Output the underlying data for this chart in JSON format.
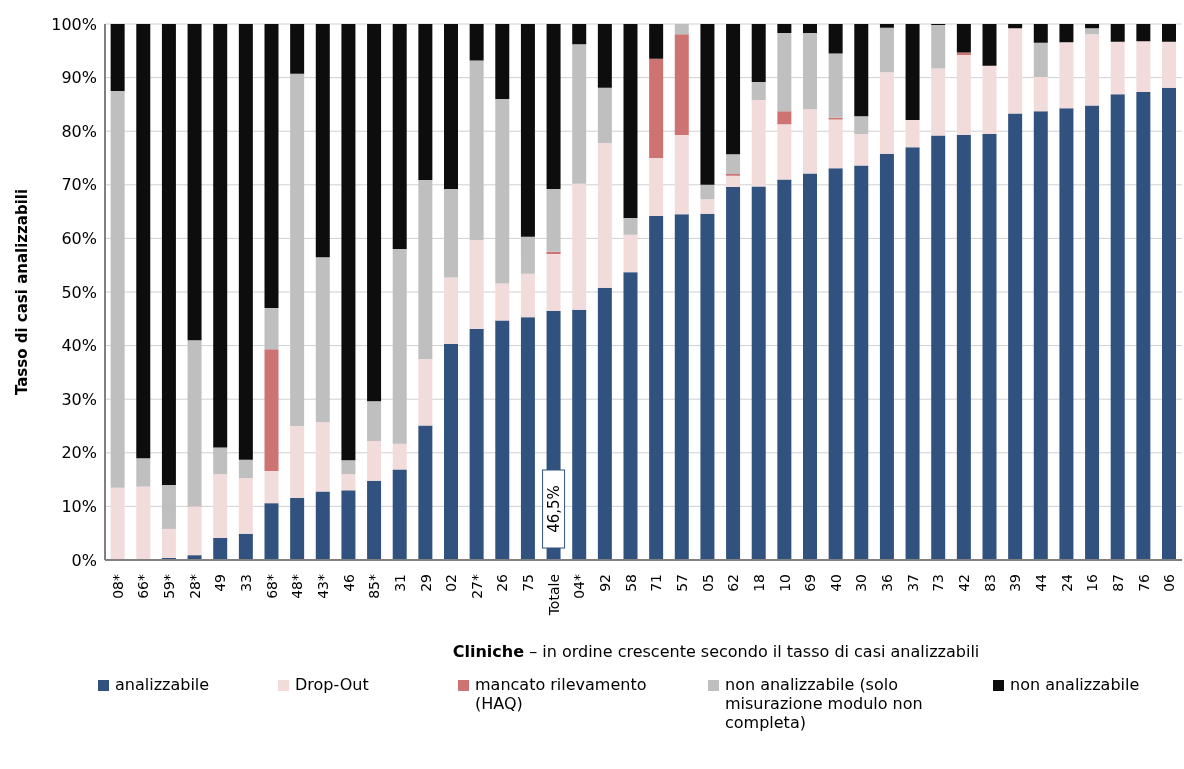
{
  "chart_data": {
    "type": "bar",
    "stacked": true,
    "ylabel": "Tasso di casi analizzabili",
    "xlabel": "Cliniche – in ordine crescente secondo il tasso di casi analizzabili",
    "categories": [
      "08*",
      "66*",
      "59*",
      "28*",
      "49",
      "33",
      "68*",
      "48*",
      "43*",
      "46",
      "85*",
      "31",
      "29",
      "02",
      "27*",
      "26",
      "75",
      "Totale",
      "04*",
      "92",
      "58",
      "71",
      "57",
      "05",
      "62",
      "18",
      "10",
      "69",
      "40",
      "30",
      "36",
      "37",
      "73",
      "42",
      "83",
      "39",
      "44",
      "24",
      "16",
      "87",
      "76",
      "06"
    ],
    "series": [
      {
        "name": "analizzabile",
        "color": "#31527f",
        "value_labels": [
          null,
          null,
          null,
          null,
          null,
          null,
          null,
          null,
          null,
          null,
          null,
          null,
          null,
          null,
          null,
          null,
          null,
          "46,5%",
          null,
          null,
          null,
          null,
          null,
          null,
          null,
          null,
          null,
          null,
          null,
          null,
          null,
          null,
          null,
          null,
          null,
          null,
          null,
          null,
          null,
          null,
          null,
          null
        ],
        "values": [
          0,
          0,
          0.4,
          0.9,
          4.1,
          4.9,
          10.6,
          11.6,
          12.8,
          13,
          14.8,
          16.9,
          25.1,
          40.3,
          43.1,
          44.7,
          45.3,
          46.5,
          46.7,
          50.8,
          53.7,
          64.2,
          64.5,
          64.6,
          69.6,
          69.7,
          71,
          72.1,
          73.1,
          73.6,
          75.8,
          77,
          79.2,
          79.3,
          79.5,
          83.3,
          83.7,
          84.3,
          84.8,
          86.9,
          87.3,
          88.1
        ]
      },
      {
        "name": "Drop-Out",
        "color": "#f2dcdb",
        "values": [
          13.5,
          13.7,
          5.4,
          9.1,
          11.9,
          10.4,
          6,
          13.4,
          12.9,
          3,
          7.4,
          4.8,
          12.4,
          12.4,
          16.6,
          6.9,
          8.1,
          10.6,
          23.5,
          27,
          7,
          10.8,
          14.8,
          2.7,
          2.1,
          16.1,
          10.3,
          12,
          9.1,
          5.9,
          15.2,
          5.1,
          12.5,
          14.9,
          12.7,
          15.9,
          6.4,
          12.3,
          13.3,
          9.8,
          9.5,
          8.6
        ]
      },
      {
        "name": "mancato rilevamento (HAQ)",
        "color": "#cd7371",
        "values": [
          0,
          0,
          0,
          0,
          0,
          0,
          22.7,
          0,
          0,
          0,
          0,
          0,
          0,
          0,
          0,
          0,
          0,
          0.4,
          0,
          0,
          0,
          18.5,
          18.8,
          0,
          0.3,
          0,
          2.4,
          0,
          0.3,
          0,
          0,
          0,
          0,
          0.5,
          0,
          0,
          0,
          0,
          0,
          0,
          0,
          0
        ]
      },
      {
        "name": "non analizzabile (solo misurazione modulo non completa)",
        "color": "#bfbfbf",
        "values": [
          74,
          5.3,
          8.2,
          31,
          5,
          3.4,
          7.7,
          65.7,
          30.8,
          2.6,
          7.4,
          36.3,
          33.4,
          16.5,
          33.5,
          34.4,
          6.9,
          11.7,
          26,
          10.3,
          3.1,
          0,
          1.9,
          2.7,
          3.7,
          3.4,
          14.6,
          14.2,
          12,
          3.3,
          8.3,
          0,
          8.1,
          0,
          0,
          0,
          6.4,
          0,
          1.1,
          0,
          0,
          0
        ]
      },
      {
        "name": "non analizzabile",
        "color": "#0d0d0d",
        "values": [
          12.5,
          81,
          86,
          59,
          79,
          81.3,
          53,
          9.3,
          43.5,
          81.4,
          70.4,
          42,
          29.1,
          30.8,
          6.8,
          14,
          39.7,
          30.8,
          3.8,
          11.9,
          36.2,
          6.5,
          0,
          30,
          24.3,
          10.8,
          1.7,
          1.7,
          5.5,
          17.2,
          0.7,
          17.9,
          0.2,
          5.3,
          7.8,
          0.8,
          3.5,
          3.4,
          0.8,
          3.3,
          3.2,
          3.3
        ]
      }
    ],
    "ylim": [
      0,
      100
    ],
    "yticks": [
      {
        "value": 0,
        "label": "0%"
      },
      {
        "value": 10,
        "label": "10%"
      },
      {
        "value": 20,
        "label": "20%"
      },
      {
        "value": 30,
        "label": "30%"
      },
      {
        "value": 40,
        "label": "40%"
      },
      {
        "value": 50,
        "label": "50%"
      },
      {
        "value": 60,
        "label": "60%"
      },
      {
        "value": 70,
        "label": "70%"
      },
      {
        "value": 80,
        "label": "80%"
      },
      {
        "value": 90,
        "label": "90%"
      },
      {
        "value": 100,
        "label": "100%"
      }
    ],
    "grid": "y",
    "legend": "bottom"
  }
}
